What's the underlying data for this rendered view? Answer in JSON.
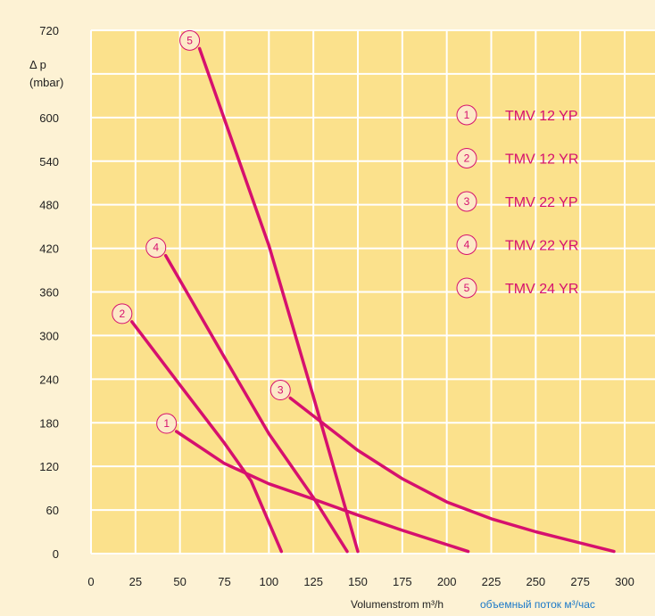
{
  "colors": {
    "page_bg": "#fdf2d4",
    "plot_bg": "#fbe18c",
    "grid": "#ffffff",
    "line": "#d6106e",
    "badge_fill": "#fde9c8",
    "xlabel_de": "#1e1e1e",
    "xlabel_ru": "#1a78c8"
  },
  "chart_data": {
    "type": "line",
    "ylabel": [
      "Δ p",
      "(mbar)"
    ],
    "xlabel_de": "Volumenstrom m³/h",
    "xlabel_ru": "объемный поток м³/час",
    "xlim": [
      0,
      300
    ],
    "ylim": [
      0,
      720
    ],
    "x_ticks": [
      0,
      25,
      50,
      75,
      100,
      125,
      150,
      175,
      200,
      225,
      250,
      275,
      300
    ],
    "y_ticks": [
      0,
      60,
      120,
      180,
      240,
      300,
      360,
      420,
      480,
      540,
      600,
      720
    ],
    "grid": true,
    "legend_position": "top-right",
    "series": [
      {
        "id": "1",
        "name": "TMV 12 YP",
        "points": [
          [
            48,
            168
          ],
          [
            75,
            124
          ],
          [
            100,
            96
          ],
          [
            125,
            75
          ],
          [
            150,
            53
          ],
          [
            175,
            32
          ],
          [
            212,
            3
          ]
        ]
      },
      {
        "id": "2",
        "name": "TMV 12 YR",
        "points": [
          [
            23,
            319
          ],
          [
            50,
            232
          ],
          [
            75,
            152
          ],
          [
            90,
            100
          ],
          [
            107,
            3
          ]
        ]
      },
      {
        "id": "3",
        "name": "TMV 22 YP",
        "points": [
          [
            112,
            214
          ],
          [
            150,
            142
          ],
          [
            175,
            103
          ],
          [
            200,
            71
          ],
          [
            225,
            48
          ],
          [
            250,
            30
          ],
          [
            294,
            3
          ]
        ]
      },
      {
        "id": "4",
        "name": "TMV 22 YR",
        "points": [
          [
            42,
            410
          ],
          [
            75,
            270
          ],
          [
            100,
            165
          ],
          [
            125,
            77
          ],
          [
            144,
            3
          ]
        ]
      },
      {
        "id": "5",
        "name": "TMV 24 YR",
        "points": [
          [
            61,
            695
          ],
          [
            100,
            424
          ],
          [
            125,
            216
          ],
          [
            150,
            3
          ]
        ]
      }
    ]
  }
}
